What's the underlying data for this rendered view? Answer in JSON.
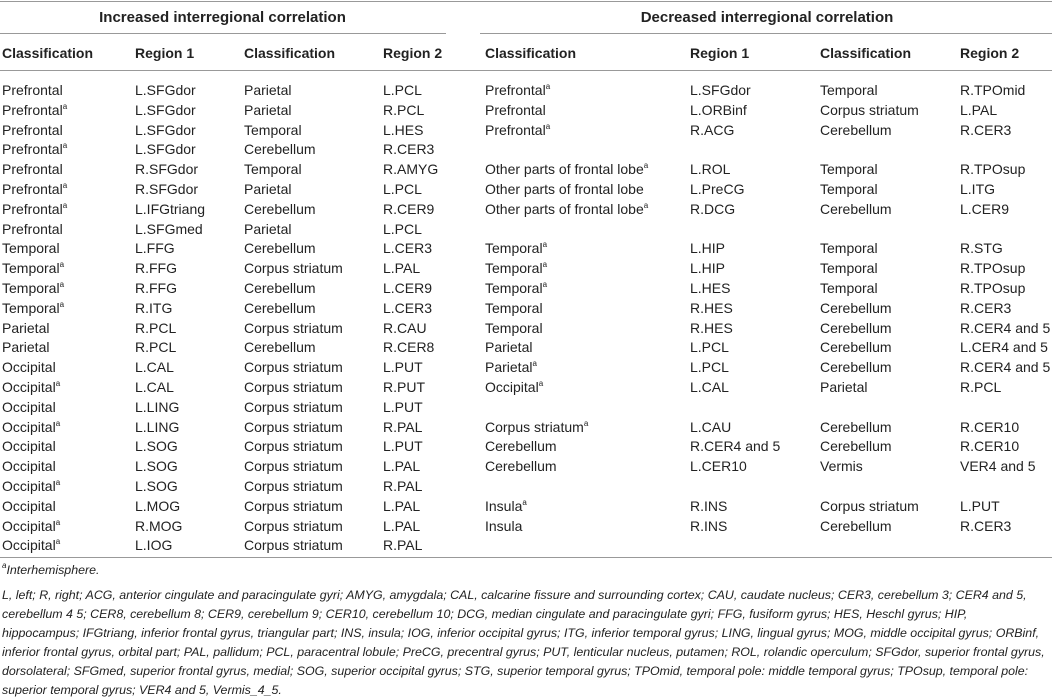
{
  "left": {
    "title": "Increased interregional correlation",
    "headers": [
      "Classification",
      "Region 1",
      "Classification",
      "Region 2"
    ],
    "rows": [
      [
        {
          "text": "Prefrontal"
        },
        "L.SFGdor",
        "Parietal",
        "L.PCL"
      ],
      [
        {
          "text": "Prefrontal",
          "sup": "a"
        },
        "L.SFGdor",
        "Parietal",
        "R.PCL"
      ],
      [
        {
          "text": "Prefrontal"
        },
        "L.SFGdor",
        "Temporal",
        "L.HES"
      ],
      [
        {
          "text": "Prefrontal",
          "sup": "a"
        },
        "L.SFGdor",
        "Cerebellum",
        "R.CER3"
      ],
      [
        {
          "text": "Prefrontal"
        },
        "R.SFGdor",
        "Temporal",
        "R.AMYG"
      ],
      [
        {
          "text": "Prefrontal",
          "sup": "a"
        },
        "R.SFGdor",
        "Parietal",
        "L.PCL"
      ],
      [
        {
          "text": "Prefrontal",
          "sup": "a"
        },
        "L.IFGtriang",
        "Cerebellum",
        "R.CER9"
      ],
      [
        {
          "text": "Prefrontal"
        },
        "L.SFGmed",
        "Parietal",
        "L.PCL"
      ],
      [
        {
          "text": "Temporal"
        },
        "L.FFG",
        "Cerebellum",
        "L.CER3"
      ],
      [
        {
          "text": "Temporal",
          "sup": "a"
        },
        "R.FFG",
        "Corpus striatum",
        "L.PAL"
      ],
      [
        {
          "text": "Temporal",
          "sup": "a"
        },
        "R.FFG",
        "Cerebellum",
        "L.CER9"
      ],
      [
        {
          "text": "Temporal",
          "sup": "a"
        },
        "R.ITG",
        "Cerebellum",
        "L.CER3"
      ],
      [
        {
          "text": "Parietal"
        },
        "R.PCL",
        "Corpus striatum",
        "R.CAU"
      ],
      [
        {
          "text": "Parietal"
        },
        "R.PCL",
        "Cerebellum",
        "R.CER8"
      ],
      [
        {
          "text": "Occipital"
        },
        "L.CAL",
        "Corpus striatum",
        "L.PUT"
      ],
      [
        {
          "text": "Occipital",
          "sup": "a"
        },
        "L.CAL",
        "Corpus striatum",
        "R.PUT"
      ],
      [
        {
          "text": "Occipital"
        },
        "L.LING",
        "Corpus striatum",
        "L.PUT"
      ],
      [
        {
          "text": "Occipital",
          "sup": "a"
        },
        "L.LING",
        "Corpus striatum",
        "R.PAL"
      ],
      [
        {
          "text": "Occipital"
        },
        "L.SOG",
        "Corpus striatum",
        "L.PUT"
      ],
      [
        {
          "text": "Occipital"
        },
        "L.SOG",
        "Corpus striatum",
        "L.PAL"
      ],
      [
        {
          "text": "Occipital",
          "sup": "a"
        },
        "L.SOG",
        "Corpus striatum",
        "R.PAL"
      ],
      [
        {
          "text": "Occipital"
        },
        "L.MOG",
        "Corpus striatum",
        "L.PAL"
      ],
      [
        {
          "text": "Occipital",
          "sup": "a"
        },
        "R.MOG",
        "Corpus striatum",
        "L.PAL"
      ],
      [
        {
          "text": "Occipital",
          "sup": "a"
        },
        "L.IOG",
        "Corpus striatum",
        "R.PAL"
      ]
    ]
  },
  "right": {
    "title": "Decreased interregional correlation",
    "headers": [
      "Classification",
      "Region 1",
      "Classification",
      "Region 2"
    ],
    "groups": [
      [
        [
          {
            "text": "Prefrontal",
            "sup": "a"
          },
          "L.SFGdor",
          "Temporal",
          "R.TPOmid"
        ],
        [
          {
            "text": "Prefrontal"
          },
          "L.ORBinf",
          "Corpus striatum",
          "L.PAL"
        ],
        [
          {
            "text": "Prefrontal",
            "sup": "a"
          },
          "R.ACG",
          "Cerebellum",
          "R.CER3"
        ]
      ],
      [
        [
          {
            "text": "Other parts of frontal lobe",
            "sup": "a"
          },
          "L.ROL",
          "Temporal",
          "R.TPOsup"
        ],
        [
          {
            "text": "Other parts of frontal lobe"
          },
          "L.PreCG",
          "Temporal",
          "L.ITG"
        ],
        [
          {
            "text": "Other parts of frontal lobe",
            "sup": "a"
          },
          "R.DCG",
          "Cerebellum",
          "L.CER9"
        ]
      ],
      [
        [
          {
            "text": "Temporal",
            "sup": "a"
          },
          "L.HIP",
          "Temporal",
          "R.STG"
        ],
        [
          {
            "text": "Temporal",
            "sup": "a"
          },
          "L.HIP",
          "Temporal",
          "R.TPOsup"
        ],
        [
          {
            "text": "Temporal",
            "sup": "a"
          },
          "L.HES",
          "Temporal",
          "R.TPOsup"
        ],
        [
          {
            "text": "Temporal"
          },
          "R.HES",
          "Cerebellum",
          "R.CER3"
        ],
        [
          {
            "text": "Temporal"
          },
          "R.HES",
          "Cerebellum",
          "R.CER4 and 5"
        ],
        [
          {
            "text": "Parietal"
          },
          "L.PCL",
          "Cerebellum",
          "L.CER4 and 5"
        ],
        [
          {
            "text": "Parietal",
            "sup": "a"
          },
          "L.PCL",
          "Cerebellum",
          "R.CER4 and 5"
        ],
        [
          {
            "text": "Occipital",
            "sup": "a"
          },
          "L.CAL",
          "Parietal",
          "R.PCL"
        ]
      ],
      [
        [
          {
            "text": "Corpus striatum",
            "sup": "a"
          },
          "L.CAU",
          "Cerebellum",
          "R.CER10"
        ],
        [
          {
            "text": "Cerebellum"
          },
          "R.CER4 and 5",
          "Cerebellum",
          "R.CER10"
        ],
        [
          {
            "text": "Cerebellum"
          },
          "L.CER10",
          "Vermis",
          "VER4 and 5"
        ]
      ],
      [
        [
          {
            "text": "Insula",
            "sup": "a"
          },
          "R.INS",
          "Corpus striatum",
          "L.PUT"
        ],
        [
          {
            "text": "Insula"
          },
          "R.INS",
          "Cerebellum",
          "R.CER3"
        ]
      ]
    ]
  },
  "footnote": {
    "marker": "a",
    "text": "Interhemisphere.",
    "abbreviations": "L, left; R, right; ACG, anterior cingulate and paracingulate gyri; AMYG, amygdala; CAL, calcarine fissure and surrounding cortex; CAU, caudate nucleus; CER3, cerebellum 3; CER4 and 5, cerebellum 4 5; CER8, cerebellum 8; CER9, cerebellum 9; CER10, cerebellum 10; DCG, median cingulate and paracingulate gyri; FFG, fusiform gyrus; HES, Heschl gyrus; HIP, hippocampus; IFGtriang, inferior frontal gyrus, triangular part; INS, insula; IOG, inferior occipital gyrus; ITG, inferior temporal gyrus; LING, lingual gyrus; MOG, middle occipital gyrus; ORBinf, inferior frontal gyrus, orbital part; PAL, pallidum; PCL, paracentral lobule; PreCG, precentral gyrus; PUT, lenticular nucleus, putamen; ROL, rolandic operculum; SFGdor, superior frontal gyrus, dorsolateral; SFGmed, superior frontal gyrus, medial; SOG, superior occipital gyrus; STG, superior temporal gyrus; TPOmid, temporal pole: middle temporal gyrus; TPOsup, temporal pole: superior temporal gyrus; VER4 and 5, Vermis_4_5."
  }
}
